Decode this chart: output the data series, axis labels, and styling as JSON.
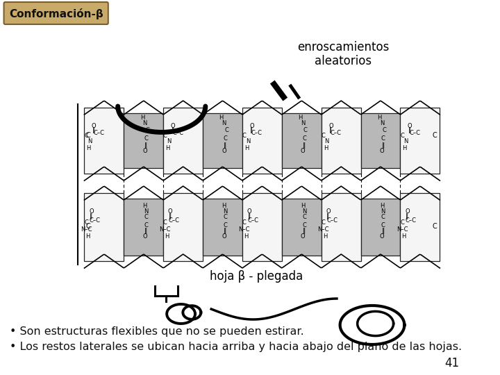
{
  "title": "Conformación-β",
  "title_bg_color": "#c8aa6a",
  "title_border_color": "#7a6030",
  "title_text_color": "#111111",
  "bg_color": "#ffffff",
  "bullet1": "• Son estructuras flexibles que no se pueden estirar.",
  "bullet2": "• Los restos laterales se ubican hacia arriba y hacia abajo del plano de las hojas.",
  "page_number": "41",
  "text_color": "#111111",
  "enroscamientos": "enroscamientos\naleatorios",
  "hoja_label": "hoja β - plegada",
  "sheet_white": "#f5f5f5",
  "sheet_gray": "#b8b8b8",
  "sheet_edge": "#222222"
}
